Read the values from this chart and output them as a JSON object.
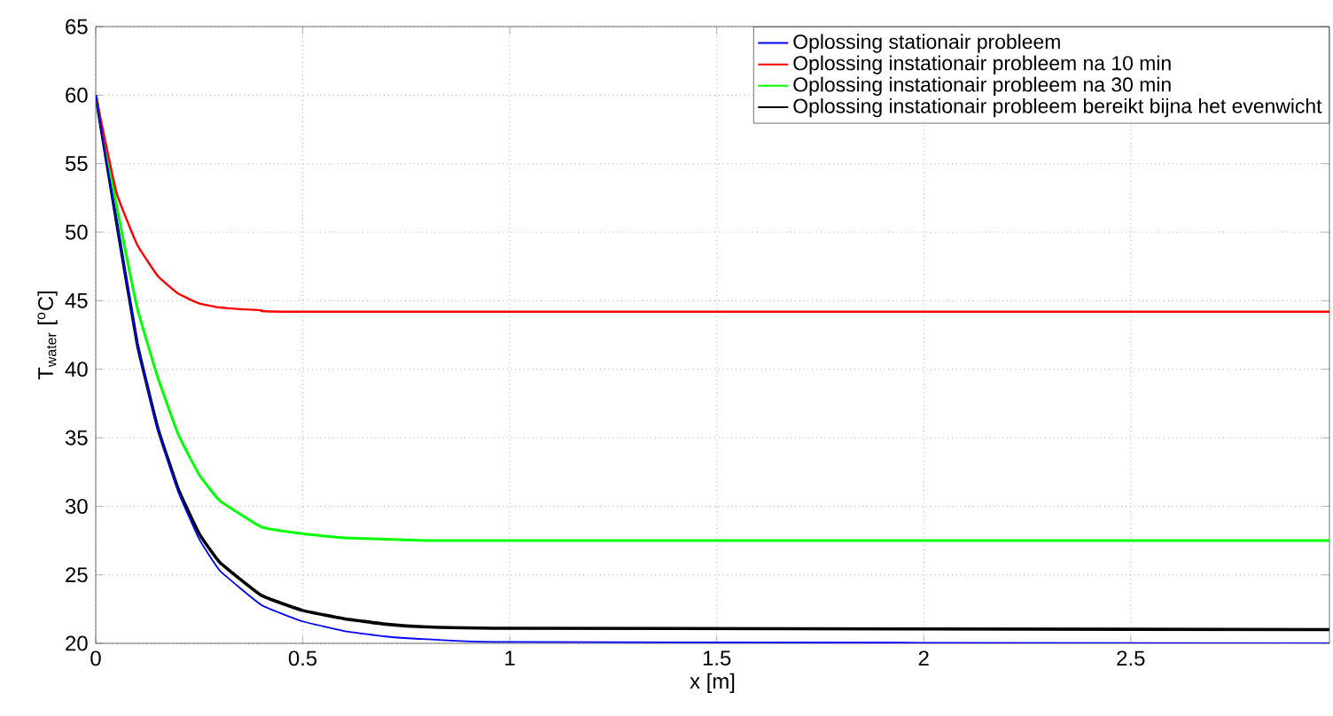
{
  "chart_data": {
    "type": "line",
    "xlabel": "x [m]",
    "ylabel": "T$_{water}$ [$^{o}$C]",
    "xlim": [
      0,
      2.98
    ],
    "ylim": [
      20,
      65
    ],
    "xticks": [
      0,
      0.5,
      1,
      1.5,
      2,
      2.5
    ],
    "yticks": [
      20,
      25,
      30,
      35,
      40,
      45,
      50,
      55,
      60,
      65
    ],
    "grid": true,
    "legend": "top right",
    "marker": "none",
    "line_style": "solid",
    "series": [
      {
        "name": "Oplossing stationair probleem",
        "color": "#0000ff",
        "x": [
          0,
          0.05,
          0.1,
          0.15,
          0.2,
          0.25,
          0.3,
          0.4,
          0.5,
          0.6,
          0.7,
          0.8,
          1.0,
          2.98
        ],
        "values": [
          60,
          50.8,
          41.9,
          35.6,
          31.0,
          27.6,
          25.3,
          22.8,
          21.6,
          20.9,
          20.5,
          20.3,
          20.1,
          20
        ]
      },
      {
        "name": "Oplossing instationair probleem na 10 min",
        "color": "#ff0000",
        "x": [
          0,
          0.05,
          0.1,
          0.15,
          0.2,
          0.25,
          0.3,
          0.4,
          0.5,
          2.98
        ],
        "values": [
          60,
          52.9,
          49.1,
          46.8,
          45.5,
          44.8,
          44.5,
          44.3,
          44.2,
          44.2
        ]
      },
      {
        "name": "Oplossing instationair probleem na 30 min",
        "color": "#00ff00",
        "x": [
          0,
          0.05,
          0.1,
          0.15,
          0.2,
          0.25,
          0.3,
          0.4,
          0.5,
          0.6,
          0.8,
          1.0,
          2.98
        ],
        "values": [
          60,
          52.0,
          44.5,
          39.4,
          35.2,
          32.3,
          30.4,
          28.5,
          28.0,
          27.7,
          27.5,
          27.5,
          27.5
        ]
      },
      {
        "name": "Oplossing instationair probleem bereikt bijna het evenwicht",
        "color": "#000000",
        "x": [
          0,
          0.05,
          0.1,
          0.15,
          0.2,
          0.25,
          0.3,
          0.4,
          0.5,
          0.6,
          0.7,
          0.8,
          1.0,
          2.98
        ],
        "values": [
          60,
          50.8,
          41.9,
          35.7,
          31.2,
          28.0,
          25.9,
          23.5,
          22.4,
          21.8,
          21.4,
          21.2,
          21.1,
          21
        ]
      }
    ]
  }
}
